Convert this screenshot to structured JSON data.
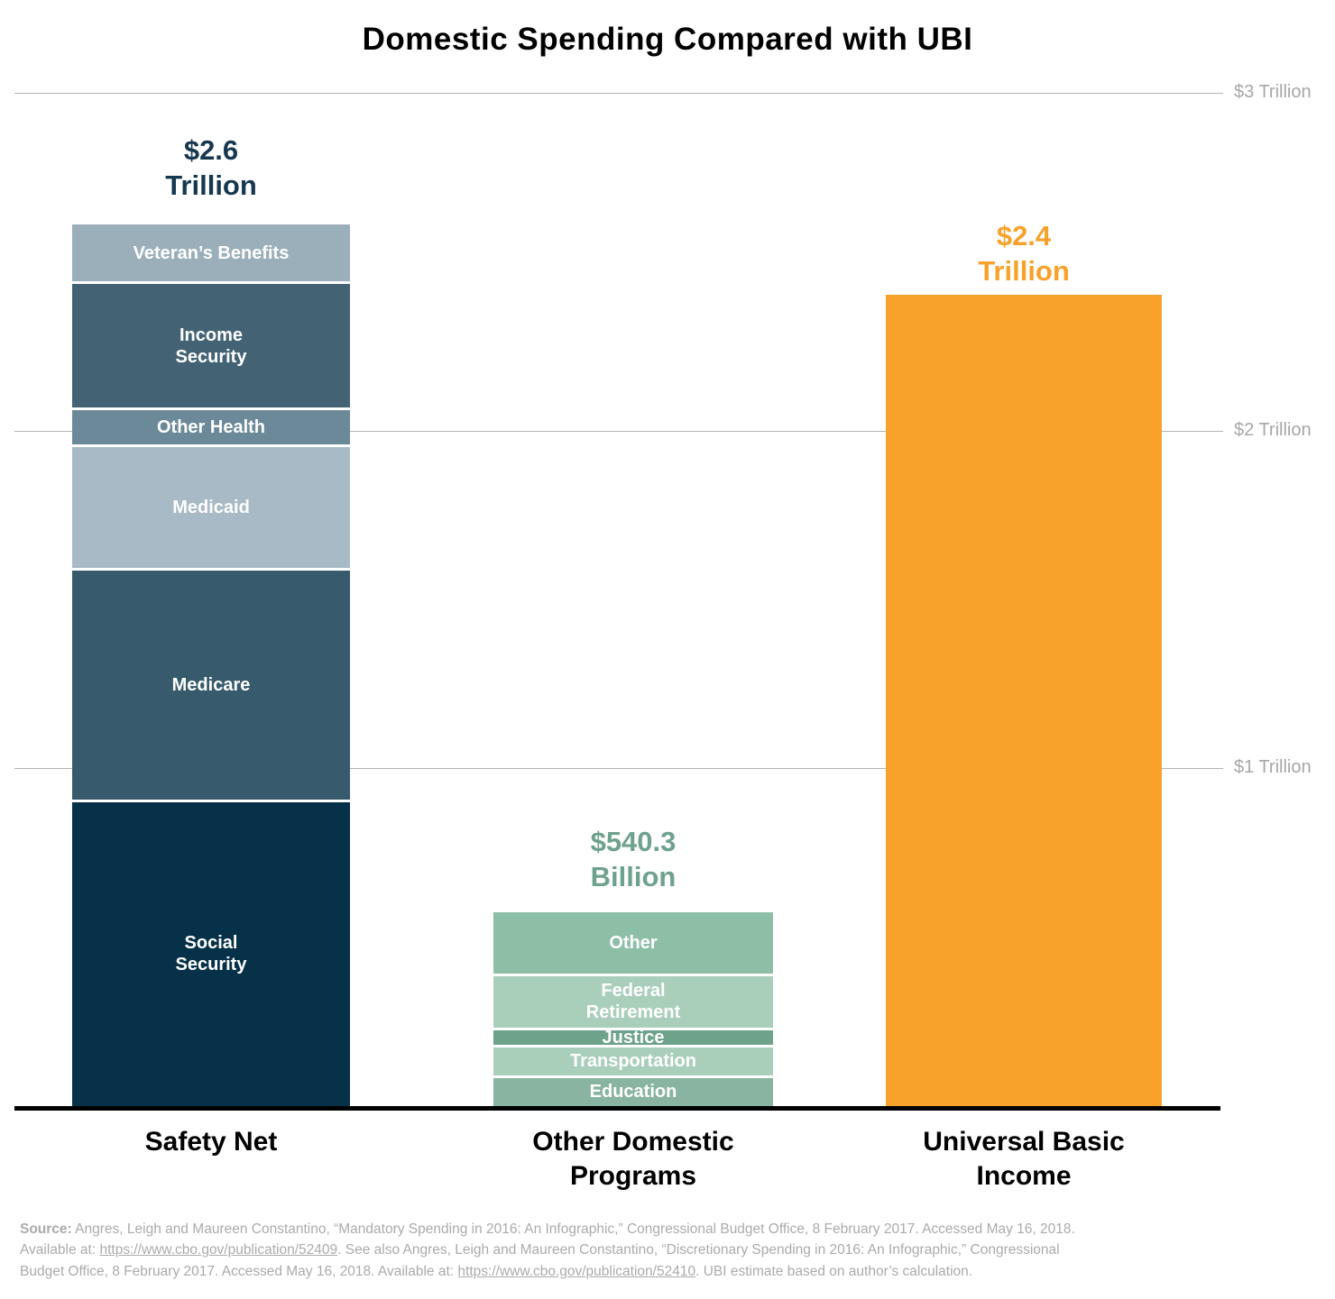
{
  "chart_data": {
    "type": "bar",
    "stacked": true,
    "title": "Domestic Spending Compared with UBI",
    "value_unit": "billions of USD",
    "values_estimated": true,
    "y_axis": {
      "tick_labels": [
        "$3 Trillion",
        "$2 Trillion",
        "$1 Trillion"
      ],
      "range_billions": [
        0,
        3000
      ],
      "gridlines": true,
      "tick_side": "right"
    },
    "bars": [
      {
        "category": "Safety Net",
        "category_lines": [
          "Safety Net"
        ],
        "total_label_lines": [
          "$2.6",
          "Trillion"
        ],
        "total_value_billions": 2569,
        "label_color": "#16384f",
        "segments": [
          {
            "label": "Veteran’s Benefits",
            "value_billions": 170,
            "color": "#9bafba"
          },
          {
            "label": "Income\nSecurity",
            "value_billions": 365,
            "color": "#436375"
          },
          {
            "label": "Other Health",
            "value_billions": 100,
            "color": "#6b8999"
          },
          {
            "label": "Medicaid",
            "value_billions": 357,
            "color": "#a7bac5"
          },
          {
            "label": "Medicare",
            "value_billions": 677,
            "color": "#375a6d"
          },
          {
            "label": "Social\nSecurity",
            "value_billions": 900,
            "color": "#073049"
          }
        ]
      },
      {
        "category": "Other Domestic Programs",
        "category_lines": [
          "Other Domestic",
          "Programs"
        ],
        "total_label_lines": [
          "$540.3",
          "Billion"
        ],
        "total_value_billions": 540.3,
        "label_color": "#6fa28e",
        "segments": [
          {
            "label": "Other",
            "value_billions": 180,
            "color": "#8dbea6"
          },
          {
            "label": "Federal\nRetirement",
            "value_billions": 152,
            "color": "#a9cfba"
          },
          {
            "label": "Justice",
            "value_billions": 42,
            "color": "#6fa28b"
          },
          {
            "label": "Transportation",
            "value_billions": 83,
            "color": "#a9cfba"
          },
          {
            "label": "Education",
            "value_billions": 83.3,
            "color": "#89b4a1"
          }
        ]
      },
      {
        "category": "Universal Basic Income",
        "category_lines": [
          "Universal Basic",
          "Income"
        ],
        "total_label_lines": [
          "$2.4",
          "Trillion"
        ],
        "total_value_billions": 2400,
        "label_color": "#f8a22c",
        "segments": [
          {
            "label": "",
            "value_billions": 2400,
            "color": "#f8a22c"
          }
        ]
      }
    ]
  },
  "source": {
    "lines": [
      [
        {
          "text": "Source:",
          "bold": true
        },
        {
          "text": " Angres, Leigh and Maureen Constantino, “Mandatory Spending in 2016: An Infographic,” Congressional Budget Office, 8 February 2017. Accessed May 16, 2018."
        }
      ],
      [
        {
          "text": "Available at: "
        },
        {
          "text": "https://www.cbo.gov/publication/52409",
          "link": true
        },
        {
          "text": ". See also Angres, Leigh and Maureen Constantino, “Discretionary Spending in 2016: An Infographic,” Congressional"
        }
      ],
      [
        {
          "text": "Budget Office, 8 February 2017. Accessed May 16, 2018. Available at: "
        },
        {
          "text": "https://www.cbo.gov/publication/52410",
          "link": true
        },
        {
          "text": ". UBI estimate based on author’s calculation."
        }
      ]
    ]
  }
}
